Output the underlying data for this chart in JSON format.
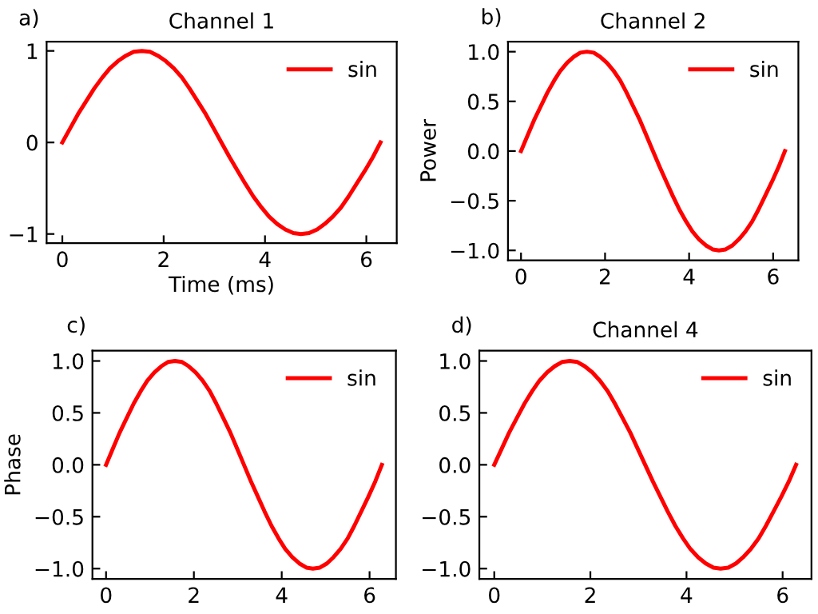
{
  "chart_data": [
    {
      "type": "line",
      "title": "Channel 1",
      "xlabel": "Time (ms)",
      "annotations": [
        "a)"
      ],
      "xlim": [
        -0.31,
        6.6
      ],
      "ylim": [
        -1.1,
        1.1
      ],
      "xticks": [
        0,
        2,
        4,
        6
      ],
      "yticks": [
        {
          "value": -1,
          "label": "−1"
        },
        0,
        1
      ],
      "legend": "top right",
      "x": [
        0,
        0.16,
        0.31,
        0.47,
        0.63,
        0.79,
        0.94,
        1.1,
        1.26,
        1.41,
        1.57,
        1.73,
        1.88,
        2.04,
        2.2,
        2.36,
        2.51,
        2.67,
        2.83,
        2.98,
        3.14,
        3.3,
        3.46,
        3.61,
        3.77,
        3.93,
        4.08,
        4.24,
        4.4,
        4.56,
        4.71,
        4.87,
        5.03,
        5.18,
        5.34,
        5.5,
        5.65,
        5.81,
        5.97,
        6.13,
        6.28
      ],
      "series": [
        {
          "name": "sin",
          "color": "#ff0000",
          "values": [
            0,
            0.16,
            0.31,
            0.45,
            0.59,
            0.71,
            0.81,
            0.89,
            0.95,
            0.99,
            1,
            0.99,
            0.95,
            0.89,
            0.81,
            0.71,
            0.59,
            0.45,
            0.31,
            0.16,
            0,
            -0.16,
            -0.31,
            -0.45,
            -0.59,
            -0.71,
            -0.81,
            -0.89,
            -0.95,
            -0.99,
            -1,
            -0.99,
            -0.95,
            -0.89,
            -0.81,
            -0.71,
            -0.59,
            -0.45,
            -0.31,
            -0.16,
            0
          ]
        }
      ]
    },
    {
      "type": "line",
      "title": "Channel 2",
      "ylabel": "Power",
      "annotations": [
        "b)"
      ],
      "xlim": [
        -0.31,
        6.6
      ],
      "ylim": [
        -1.1,
        1.1
      ],
      "xticks": [
        0,
        2,
        4,
        6
      ],
      "yticks": [
        {
          "value": -1.0,
          "label": "−1.0"
        },
        {
          "value": -0.5,
          "label": "−0.5"
        },
        {
          "value": 0.0,
          "label": "0.0"
        },
        {
          "value": 0.5,
          "label": "0.5"
        },
        {
          "value": 1.0,
          "label": "1.0"
        }
      ],
      "legend": "top right",
      "x": [
        0,
        0.16,
        0.31,
        0.47,
        0.63,
        0.79,
        0.94,
        1.1,
        1.26,
        1.41,
        1.57,
        1.73,
        1.88,
        2.04,
        2.2,
        2.36,
        2.51,
        2.67,
        2.83,
        2.98,
        3.14,
        3.3,
        3.46,
        3.61,
        3.77,
        3.93,
        4.08,
        4.24,
        4.4,
        4.56,
        4.71,
        4.87,
        5.03,
        5.18,
        5.34,
        5.5,
        5.65,
        5.81,
        5.97,
        6.13,
        6.28
      ],
      "series": [
        {
          "name": "sin",
          "color": "#ff0000",
          "values": [
            0,
            0.16,
            0.31,
            0.45,
            0.59,
            0.71,
            0.81,
            0.89,
            0.95,
            0.99,
            1,
            0.99,
            0.95,
            0.89,
            0.81,
            0.71,
            0.59,
            0.45,
            0.31,
            0.16,
            0,
            -0.16,
            -0.31,
            -0.45,
            -0.59,
            -0.71,
            -0.81,
            -0.89,
            -0.95,
            -0.99,
            -1,
            -0.99,
            -0.95,
            -0.89,
            -0.81,
            -0.71,
            -0.59,
            -0.45,
            -0.31,
            -0.16,
            0
          ]
        }
      ]
    },
    {
      "type": "line",
      "ylabel": "Phase",
      "annotations": [
        "c)"
      ],
      "xlim": [
        -0.31,
        6.6
      ],
      "ylim": [
        -1.1,
        1.1
      ],
      "xticks": [
        0,
        2,
        4,
        6
      ],
      "yticks": [
        {
          "value": -1.0,
          "label": "−1.0"
        },
        {
          "value": -0.5,
          "label": "−0.5"
        },
        {
          "value": 0.0,
          "label": "0.0"
        },
        {
          "value": 0.5,
          "label": "0.5"
        },
        {
          "value": 1.0,
          "label": "1.0"
        }
      ],
      "legend": "top right",
      "x": [
        0,
        0.16,
        0.31,
        0.47,
        0.63,
        0.79,
        0.94,
        1.1,
        1.26,
        1.41,
        1.57,
        1.73,
        1.88,
        2.04,
        2.2,
        2.36,
        2.51,
        2.67,
        2.83,
        2.98,
        3.14,
        3.3,
        3.46,
        3.61,
        3.77,
        3.93,
        4.08,
        4.24,
        4.4,
        4.56,
        4.71,
        4.87,
        5.03,
        5.18,
        5.34,
        5.5,
        5.65,
        5.81,
        5.97,
        6.13,
        6.28
      ],
      "series": [
        {
          "name": "sin",
          "color": "#ff0000",
          "values": [
            0,
            0.16,
            0.31,
            0.45,
            0.59,
            0.71,
            0.81,
            0.89,
            0.95,
            0.99,
            1,
            0.99,
            0.95,
            0.89,
            0.81,
            0.71,
            0.59,
            0.45,
            0.31,
            0.16,
            0,
            -0.16,
            -0.31,
            -0.45,
            -0.59,
            -0.71,
            -0.81,
            -0.89,
            -0.95,
            -0.99,
            -1,
            -0.99,
            -0.95,
            -0.89,
            -0.81,
            -0.71,
            -0.59,
            -0.45,
            -0.31,
            -0.16,
            0
          ]
        }
      ]
    },
    {
      "type": "line",
      "title": "Channel 4",
      "annotations": [
        "d)"
      ],
      "xlim": [
        -0.31,
        6.6
      ],
      "ylim": [
        -1.1,
        1.1
      ],
      "xticks": [
        0,
        2,
        4,
        6
      ],
      "yticks": [
        {
          "value": -1.0,
          "label": "−1.0"
        },
        {
          "value": -0.5,
          "label": "−0.5"
        },
        {
          "value": 0.0,
          "label": "0.0"
        },
        {
          "value": 0.5,
          "label": "0.5"
        },
        {
          "value": 1.0,
          "label": "1.0"
        }
      ],
      "legend": "top right",
      "x": [
        0,
        0.16,
        0.31,
        0.47,
        0.63,
        0.79,
        0.94,
        1.1,
        1.26,
        1.41,
        1.57,
        1.73,
        1.88,
        2.04,
        2.2,
        2.36,
        2.51,
        2.67,
        2.83,
        2.98,
        3.14,
        3.3,
        3.46,
        3.61,
        3.77,
        3.93,
        4.08,
        4.24,
        4.4,
        4.56,
        4.71,
        4.87,
        5.03,
        5.18,
        5.34,
        5.5,
        5.65,
        5.81,
        5.97,
        6.13,
        6.28
      ],
      "series": [
        {
          "name": "sin",
          "color": "#ff0000",
          "values": [
            0,
            0.16,
            0.31,
            0.45,
            0.59,
            0.71,
            0.81,
            0.89,
            0.95,
            0.99,
            1,
            0.99,
            0.95,
            0.89,
            0.81,
            0.71,
            0.59,
            0.45,
            0.31,
            0.16,
            0,
            -0.16,
            -0.31,
            -0.45,
            -0.59,
            -0.71,
            -0.81,
            -0.89,
            -0.95,
            -0.99,
            -1,
            -0.99,
            -0.95,
            -0.89,
            -0.81,
            -0.71,
            -0.59,
            -0.45,
            -0.31,
            -0.16,
            0
          ]
        }
      ]
    }
  ]
}
